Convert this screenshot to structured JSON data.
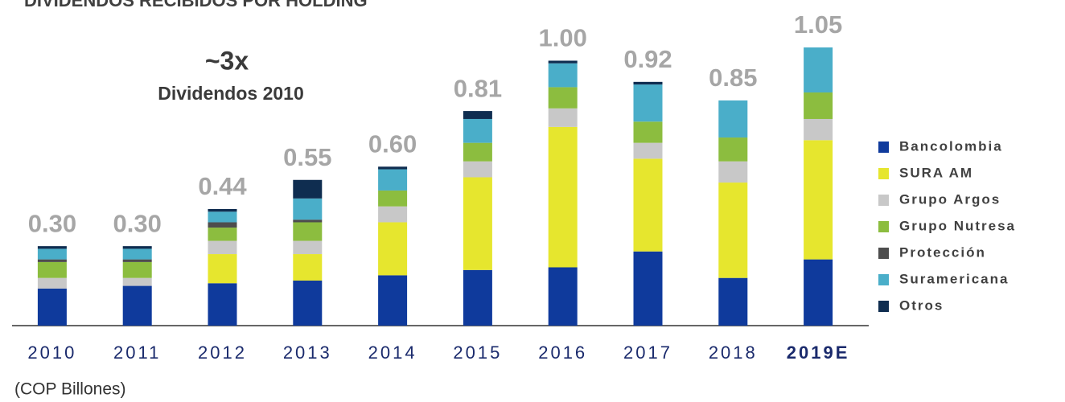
{
  "chart_data": {
    "type": "bar",
    "stacked": true,
    "title": "DIVIDENDOS RECIBIDOS POR HOLDING",
    "annotations": [
      "~3x",
      "Dividendos 2010"
    ],
    "unit_label": "(COP Billones)",
    "categories": [
      "2010",
      "2011",
      "2012",
      "2013",
      "2014",
      "2015",
      "2016",
      "2017",
      "2018",
      "2019E"
    ],
    "series": [
      {
        "name": "Bancolombia",
        "color": "#0f3a9c",
        "values": [
          0.14,
          0.15,
          0.16,
          0.17,
          0.19,
          0.21,
          0.22,
          0.28,
          0.18,
          0.25
        ]
      },
      {
        "name": "SURA AM",
        "color": "#e6e62e",
        "values": [
          0,
          0,
          0.11,
          0.1,
          0.2,
          0.35,
          0.53,
          0.35,
          0.36,
          0.45
        ]
      },
      {
        "name": "Grupo Argos",
        "color": "#c8c8c8",
        "values": [
          0.04,
          0.03,
          0.05,
          0.05,
          0.06,
          0.06,
          0.07,
          0.06,
          0.08,
          0.08
        ]
      },
      {
        "name": "Grupo Nutresa",
        "color": "#8cbd3f",
        "values": [
          0.06,
          0.06,
          0.05,
          0.07,
          0.06,
          0.07,
          0.08,
          0.08,
          0.09,
          0.1
        ]
      },
      {
        "name": "Protección",
        "color": "#4d4d4d",
        "values": [
          0.01,
          0.01,
          0.02,
          0.01,
          0,
          0,
          0,
          0,
          0,
          0
        ]
      },
      {
        "name": "Suramericana",
        "color": "#4aaec9",
        "values": [
          0.04,
          0.04,
          0.04,
          0.08,
          0.08,
          0.09,
          0.09,
          0.14,
          0.14,
          0.17
        ]
      },
      {
        "name": "Otros",
        "color": "#0f2d50",
        "values": [
          0.01,
          0.01,
          0.01,
          0.07,
          0.01,
          0.03,
          0.01,
          0.01,
          0,
          0
        ]
      }
    ],
    "totals": [
      0.3,
      0.3,
      0.44,
      0.55,
      0.6,
      0.81,
      1.0,
      0.92,
      0.85,
      1.05
    ],
    "total_labels": [
      "0.30",
      "0.30",
      "0.44",
      "0.55",
      "0.60",
      "0.81",
      "1.00",
      "0.92",
      "0.85",
      "1.05"
    ],
    "ylim": [
      0,
      1.05
    ],
    "grid": false
  }
}
